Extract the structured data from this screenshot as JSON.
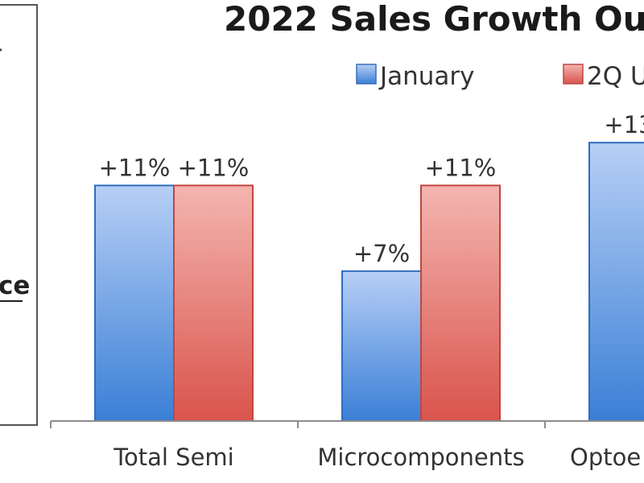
{
  "chart_data": {
    "type": "bar",
    "title": "2022 Sales Growth Ou",
    "categories": [
      "Total Semi",
      "Microcomponents",
      "Optoe"
    ],
    "series": [
      {
        "name": "January",
        "values": [
          11,
          7,
          13
        ],
        "labels": [
          "+11%",
          "+7%",
          "+13"
        ]
      },
      {
        "name": "2Q U",
        "values": [
          11,
          11,
          null
        ],
        "labels": [
          "+11%",
          "+11%",
          ""
        ]
      }
    ],
    "ylim": [
      0,
      14
    ],
    "grid": false,
    "legend_position": "top-right",
    "colors": {
      "january_light": "#b7cff5",
      "january_dark": "#3a7fd6",
      "q2_light": "#f4b5b0",
      "q2_dark": "#d9544c",
      "axis": "#8c8c8c",
      "panel_border": "#555555"
    }
  },
  "side_panel": {
    "fragment": "ce"
  }
}
